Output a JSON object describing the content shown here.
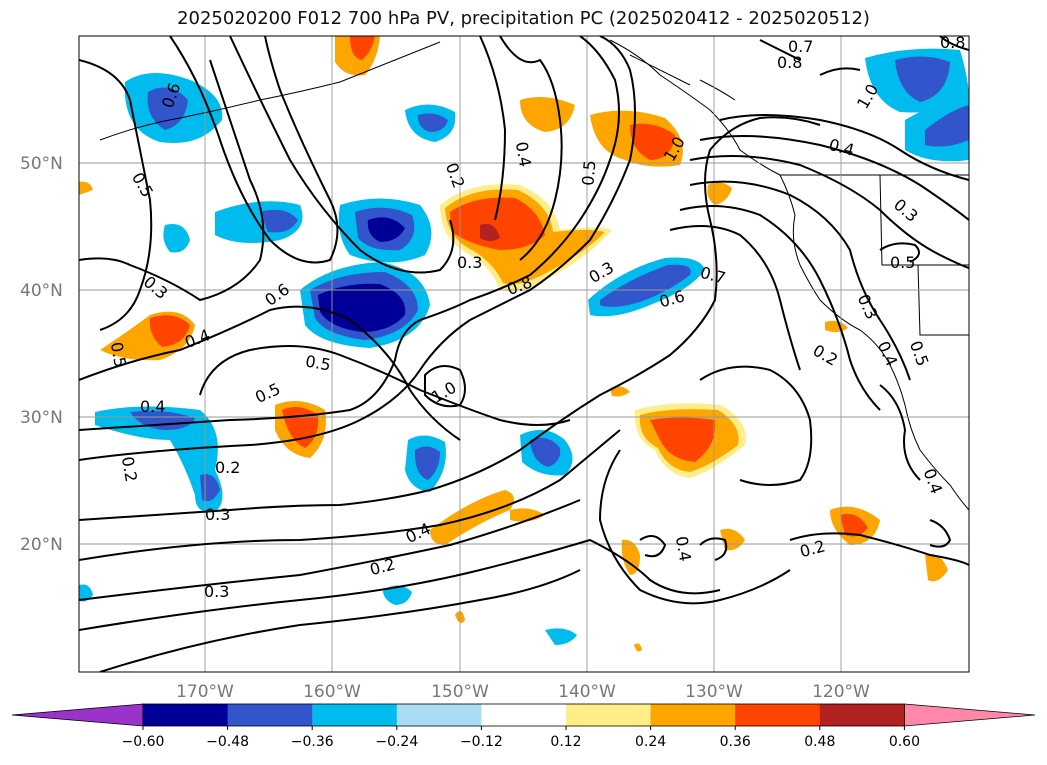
{
  "title": "2025020200 F012 700 hPa PV, precipitation PC (2025020412 - 2025020512)",
  "lat_labels": [
    "50°N",
    "40°N",
    "30°N",
    "20°N"
  ],
  "lon_labels": [
    "170°W",
    "160°W",
    "150°W",
    "140°W",
    "130°W",
    "120°W"
  ],
  "colorbar": {
    "ticks": [
      "−0.60",
      "−0.48",
      "−0.36",
      "−0.24",
      "−0.12",
      "0.12",
      "0.24",
      "0.36",
      "0.48",
      "0.60"
    ],
    "colors": [
      "#9933cc",
      "#000099",
      "#3355cc",
      "#00bbee",
      "#aaddf5",
      "#ffffff",
      "#ffee88",
      "#ffa500",
      "#ff4400",
      "#b22222",
      "#ff88aa"
    ]
  },
  "contour_labels": [
    "0.6",
    "0.5",
    "0.3",
    "0.4",
    "0.5",
    "0.4",
    "0.2",
    "0.3",
    "0.2",
    "0.6",
    "0.5",
    "0.5",
    "0.3",
    "0.4",
    "0.2",
    "0.3",
    "0.2",
    "0.8",
    "0.3",
    "0.4",
    "0.5",
    "1.0",
    "1.0",
    "0.7",
    "0.6",
    "0.8",
    "0.7",
    "0.8",
    "1.0",
    "0.4",
    "0.3",
    "0.5",
    "0.3",
    "0.4",
    "0.5",
    "0.2",
    "0.2",
    "0.4",
    "0.4"
  ]
}
